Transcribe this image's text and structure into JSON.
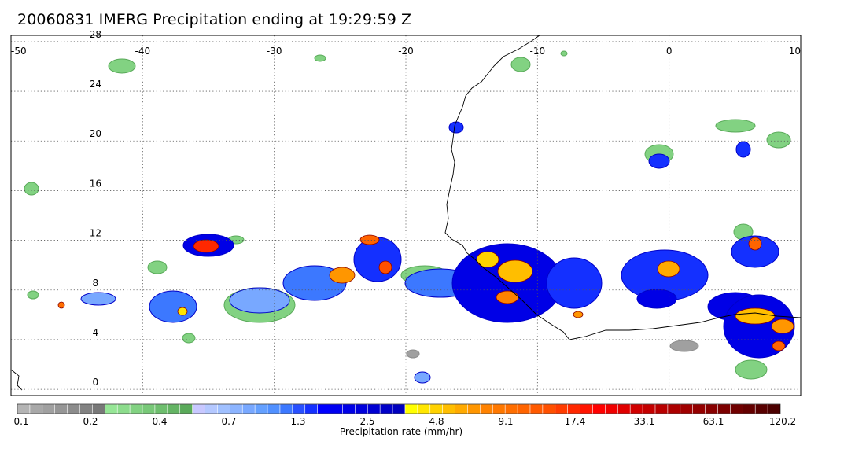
{
  "title": "20060831 IMERG Precipitation ending at 19:29:59 Z",
  "map": {
    "lon_range": [
      -50,
      10
    ],
    "lat_range": [
      -0.5,
      28.5
    ],
    "lon_ticks": [
      -50,
      -40,
      -30,
      -20,
      -10,
      0,
      10
    ],
    "lat_ticks": [
      0,
      4,
      8,
      12,
      16,
      20,
      24,
      28
    ],
    "lon_tick_labels": [
      "-50",
      "-40",
      "-30",
      "-20",
      "-10",
      "0",
      "10"
    ],
    "lat_tick_labels": [
      "0",
      "4",
      "8",
      "12",
      "16",
      "20",
      "24",
      "28"
    ],
    "gridlines": "dotted",
    "coastline_color": "#000000"
  },
  "colorbar": {
    "caption": "Precipitation rate (mm/hr)",
    "tick_labels": [
      "0.1",
      "0.2",
      "0.4",
      "0.7",
      "1.3",
      "2.5",
      "4.8",
      "9.1",
      "17.4",
      "33.1",
      "63.1",
      "120.2"
    ],
    "colors": [
      "#b4b4b4",
      "#a8a8a8",
      "#a0a0a0",
      "#969696",
      "#8c8c8c",
      "#828282",
      "#787878",
      "#96e696",
      "#8cdc8c",
      "#82d282",
      "#78c878",
      "#6ebe6e",
      "#64b464",
      "#5aaa5a",
      "#c8c8ff",
      "#b4c8ff",
      "#a0c0ff",
      "#8cb4ff",
      "#78a8ff",
      "#64a0ff",
      "#5090ff",
      "#3c78ff",
      "#2850ff",
      "#1430ff",
      "#0000ff",
      "#0000f0",
      "#0000e6",
      "#0000dc",
      "#0000d2",
      "#0000c8",
      "#0000be",
      "#ffff00",
      "#ffe600",
      "#ffd200",
      "#ffbe00",
      "#ffaa00",
      "#ff9600",
      "#ff8200",
      "#ff7800",
      "#ff6e00",
      "#ff6400",
      "#ff5a00",
      "#ff5000",
      "#ff3c00",
      "#ff2800",
      "#ff1400",
      "#ff0000",
      "#f00000",
      "#e00000",
      "#d00000",
      "#c40000",
      "#b80000",
      "#ac0000",
      "#a00000",
      "#940000",
      "#880000",
      "#7c0000",
      "#700000",
      "#640000",
      "#580000",
      "#4c0000"
    ]
  }
}
